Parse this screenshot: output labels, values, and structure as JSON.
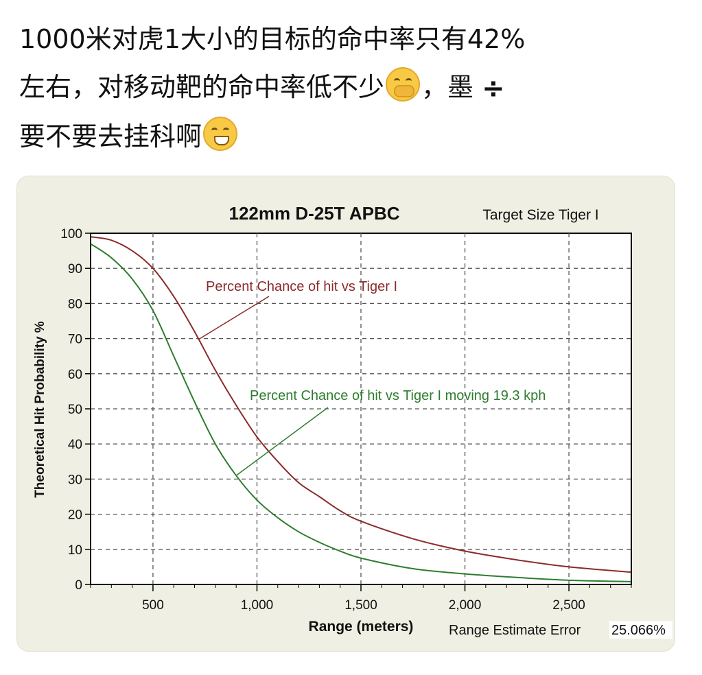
{
  "post": {
    "line1": "1000米对虎1大小的目标的命中率只有42%",
    "line2_before": "左右，对移动靶的命中率低不少",
    "line2_after": "，墨",
    "line3": "要不要去挂科啊",
    "emoji1": "hand-over-mouth-emoji",
    "emoji2": "grinning-squinting-emoji",
    "divide_glyph": "÷"
  },
  "colors": {
    "stationary": "#8b2a2a",
    "moving": "#2e7d2e",
    "plot_bg": "#ffffff",
    "card_bg": "#f0efe3"
  },
  "chart_data": {
    "type": "line",
    "title": "122mm D-25T APBC",
    "subtitle": "Target Size  Tiger I",
    "xlabel": "Range (meters)",
    "ylabel": "Theoretical Hit Probability %",
    "xlim": [
      200,
      2800
    ],
    "ylim": [
      0,
      100
    ],
    "xticks": [
      500,
      1000,
      1500,
      2000,
      2500
    ],
    "xtick_labels": [
      "500",
      "1,000",
      "1,500",
      "2,000",
      "2,500"
    ],
    "yticks": [
      0,
      10,
      20,
      30,
      40,
      50,
      60,
      70,
      80,
      90,
      100
    ],
    "grid": true,
    "footer_label": "Range Estimate Error",
    "footer_value": "25.066%",
    "series": [
      {
        "name": "Percent Chance of hit vs Tiger I",
        "x": [
          200,
          300,
          400,
          500,
          600,
          700,
          800,
          900,
          1000,
          1100,
          1200,
          1300,
          1400,
          1500,
          1750,
          2000,
          2250,
          2500,
          2800
        ],
        "y": [
          99,
          98,
          95,
          90,
          82,
          72,
          61,
          51,
          42,
          35,
          29,
          25,
          21,
          18,
          13,
          9.5,
          7,
          5,
          3.5
        ]
      },
      {
        "name": "Percent Chance of hit vs Tiger I moving 19.3 kph",
        "x": [
          200,
          300,
          400,
          500,
          600,
          700,
          800,
          900,
          1000,
          1100,
          1200,
          1300,
          1400,
          1500,
          1750,
          2000,
          2250,
          2500,
          2800
        ],
        "y": [
          97,
          93,
          87,
          78,
          65,
          52,
          40,
          31,
          24,
          19,
          15,
          12,
          9.5,
          7.5,
          4.5,
          3,
          2,
          1.2,
          0.8
        ]
      }
    ],
    "annotations": [
      {
        "text": "Percent Chance of hit vs Tiger I",
        "series": 0,
        "point_x": 720
      },
      {
        "text": "Percent Chance of hit vs Tiger I moving 19.3 kph",
        "series": 1,
        "point_x": 900
      }
    ]
  }
}
